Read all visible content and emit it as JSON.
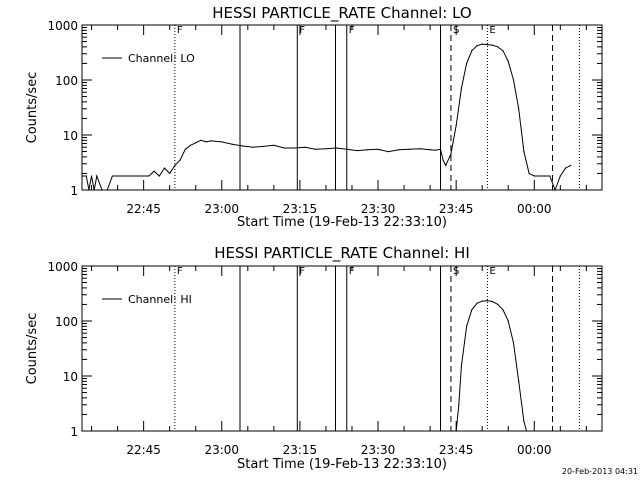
{
  "footer": {
    "timestamp": "20-Feb-2013 04:31"
  },
  "chart_data": [
    {
      "type": "line",
      "title": "HESSI PARTICLE_RATE Channel: LO",
      "xlabel": "Start Time (19-Feb-13 22:33:10)",
      "ylabel": "Counts/sec",
      "yscale": "log",
      "ylim": [
        1,
        1000
      ],
      "xlim": [
        "22:33:10",
        "00:13:00"
      ],
      "x_ticks": [
        "22:45",
        "23:00",
        "23:15",
        "23:30",
        "23:45",
        "00:00"
      ],
      "y_ticks": [
        "1",
        "10",
        "100",
        "1000"
      ],
      "grid": false,
      "legend": {
        "label": "Channel: LO",
        "position": "top-left"
      },
      "series": [
        {
          "name": "Channel: LO",
          "color": "#000000",
          "x": [
            "22:33:10",
            "22:34:00",
            "22:34:30",
            "22:35:00",
            "22:35:30",
            "22:36:00",
            "22:37:00",
            "22:38:00",
            "22:39:00",
            "22:40:00",
            "22:41:00",
            "22:42:00",
            "22:43:00",
            "22:44:00",
            "22:45:00",
            "22:46:00",
            "22:47:00",
            "22:48:00",
            "22:49:00",
            "22:50:00",
            "22:51:00",
            "22:52:00",
            "22:53:00",
            "22:54:00",
            "22:55:00",
            "22:56:00",
            "22:57:00",
            "22:58:00",
            "23:00:00",
            "23:02:00",
            "23:04:00",
            "23:06:00",
            "23:08:00",
            "23:10:00",
            "23:12:00",
            "23:14:00",
            "23:16:00",
            "23:18:00",
            "23:20:00",
            "23:22:00",
            "23:24:00",
            "23:26:00",
            "23:28:00",
            "23:30:00",
            "23:32:00",
            "23:34:00",
            "23:36:00",
            "23:38:00",
            "23:40:00",
            "23:41:00",
            "23:42:00",
            "23:42:30",
            "23:43:00",
            "23:44:00",
            "23:45:00",
            "23:46:00",
            "23:47:00",
            "23:48:00",
            "23:49:00",
            "23:50:00",
            "23:51:00",
            "23:52:00",
            "23:53:00",
            "23:54:00",
            "23:55:00",
            "23:56:00",
            "23:57:00",
            "23:58:00",
            "23:59:00",
            "00:00:00",
            "00:01:00",
            "00:02:00",
            "00:03:00",
            "00:04:00",
            "00:05:00",
            "00:06:00",
            "00:07:00"
          ],
          "y": [
            1.8,
            1.8,
            1.0,
            1.8,
            1.0,
            1.8,
            1.0,
            1.0,
            1.8,
            1.8,
            1.8,
            1.8,
            1.8,
            1.8,
            1.8,
            1.8,
            2.2,
            1.8,
            2.5,
            2.0,
            2.8,
            3.5,
            5.5,
            6.5,
            7.2,
            8.0,
            7.5,
            7.8,
            7.5,
            6.8,
            6.3,
            6.0,
            6.2,
            6.5,
            5.8,
            5.8,
            6.0,
            5.5,
            5.6,
            5.8,
            5.5,
            5.2,
            5.4,
            5.5,
            5.0,
            5.4,
            5.5,
            5.6,
            5.4,
            5.3,
            5.5,
            3.5,
            2.8,
            4.5,
            15,
            70,
            200,
            340,
            420,
            450,
            440,
            430,
            400,
            340,
            220,
            100,
            30,
            5,
            2.0,
            1.8,
            1.8,
            1.8,
            1.8,
            1.0,
            1.8,
            2.5,
            2.8
          ]
        }
      ],
      "event_lines": [
        {
          "label": "F",
          "time": "22:51:00",
          "style": "dotted"
        },
        {
          "label": "",
          "time": "23:03:30",
          "style": "solid"
        },
        {
          "label": "F",
          "time": "23:14:30",
          "style": "solid"
        },
        {
          "label": "",
          "time": "23:21:50",
          "style": "solid"
        },
        {
          "label": "F",
          "time": "23:24:00",
          "style": "solid"
        },
        {
          "label": "",
          "time": "23:42:00",
          "style": "solid"
        },
        {
          "label": "S",
          "time": "23:44:00",
          "style": "dashed"
        },
        {
          "label": "E",
          "time": "23:51:00",
          "style": "dotted"
        },
        {
          "label": "",
          "time": "00:03:30",
          "style": "dashed"
        },
        {
          "label": "",
          "time": "00:08:40",
          "style": "dotted"
        }
      ]
    },
    {
      "type": "line",
      "title": "HESSI PARTICLE_RATE Channel: HI",
      "xlabel": "Start Time (19-Feb-13 22:33:10)",
      "ylabel": "Counts/sec",
      "yscale": "log",
      "ylim": [
        1,
        1000
      ],
      "xlim": [
        "22:33:10",
        "00:13:00"
      ],
      "x_ticks": [
        "22:45",
        "23:00",
        "23:15",
        "23:30",
        "23:45",
        "00:00"
      ],
      "y_ticks": [
        "1",
        "10",
        "100",
        "1000"
      ],
      "grid": false,
      "legend": {
        "label": "Channel: HI",
        "position": "top-left"
      },
      "series": [
        {
          "name": "Channel: HI",
          "color": "#000000",
          "x": [
            "23:45:00",
            "23:45:30",
            "23:46:00",
            "23:47:00",
            "23:48:00",
            "23:49:00",
            "23:50:00",
            "23:51:00",
            "23:52:00",
            "23:53:00",
            "23:54:00",
            "23:55:00",
            "23:56:00",
            "23:57:00",
            "23:58:00",
            "23:58:30"
          ],
          "y": [
            1.0,
            3.0,
            15,
            80,
            160,
            210,
            230,
            235,
            225,
            200,
            160,
            100,
            40,
            8,
            1.5,
            1.0
          ]
        }
      ],
      "event_lines": [
        {
          "label": "F",
          "time": "22:51:00",
          "style": "dotted"
        },
        {
          "label": "",
          "time": "23:03:30",
          "style": "solid"
        },
        {
          "label": "F",
          "time": "23:14:30",
          "style": "solid"
        },
        {
          "label": "",
          "time": "23:21:50",
          "style": "solid"
        },
        {
          "label": "F",
          "time": "23:24:00",
          "style": "solid"
        },
        {
          "label": "",
          "time": "23:42:00",
          "style": "solid"
        },
        {
          "label": "S",
          "time": "23:44:00",
          "style": "dashed"
        },
        {
          "label": "E",
          "time": "23:51:00",
          "style": "dotted"
        },
        {
          "label": "",
          "time": "00:03:30",
          "style": "dashed"
        },
        {
          "label": "",
          "time": "00:08:40",
          "style": "dotted"
        }
      ]
    }
  ]
}
